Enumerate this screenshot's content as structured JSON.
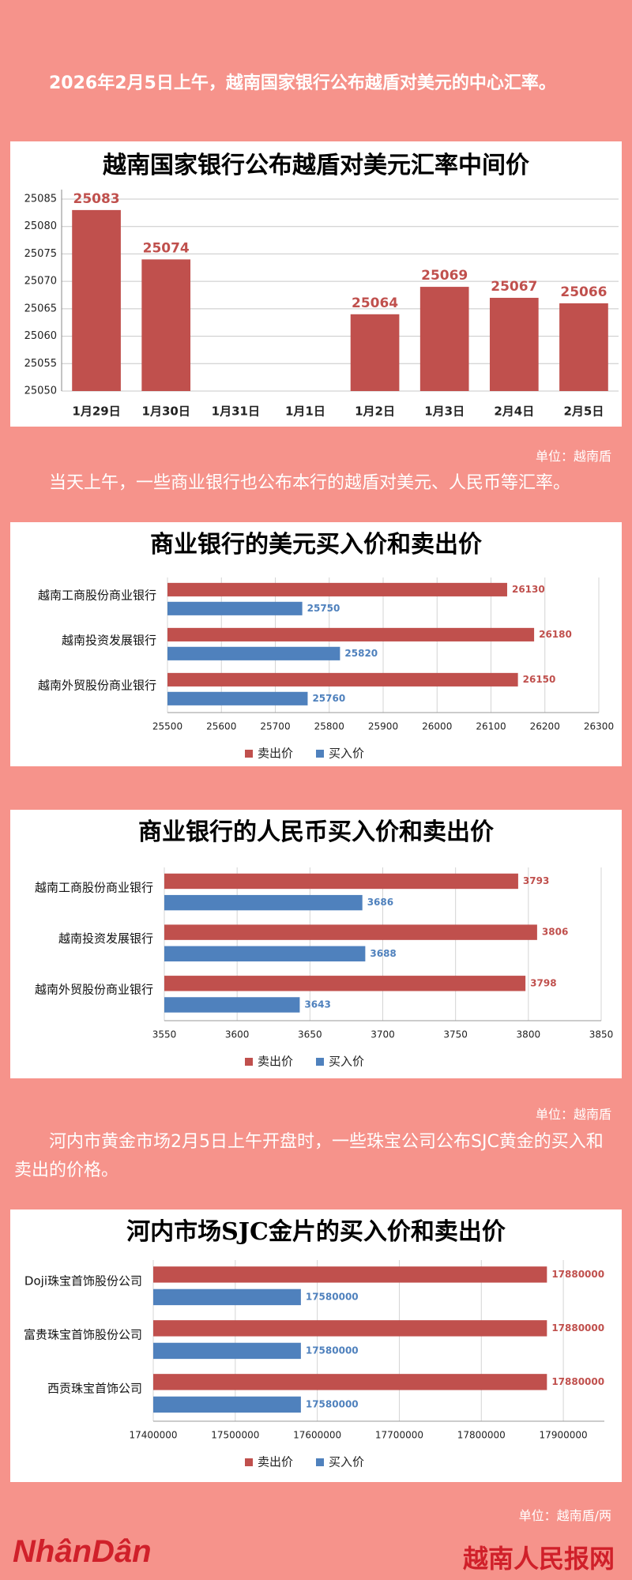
{
  "paragraphs": [
    "2026年2月5日上午，越南国家银行公布越盾对美元的中心汇率。",
    "当天上午，一些商业银行也公布本行的越盾对美元、人民币等汇率。",
    "河内市黄金市场2月5日上午开盘时，一些珠宝公司公布SJC黄金的买入和卖出的价格。"
  ],
  "units": [
    "单位：越南盾",
    "单位：越南盾",
    "单位：越南盾/两"
  ],
  "footer": {
    "logo": "NhânDân",
    "site": "越南人民报网"
  },
  "chart_data": [
    {
      "type": "bar",
      "title": "越南国家银行公布越盾对美元汇率中间价",
      "categories": [
        "1月29日",
        "1月30日",
        "1月31日",
        "1月1日",
        "1月2日",
        "1月3日",
        "2月4日",
        "2月5日"
      ],
      "values": [
        25083,
        25074,
        null,
        null,
        25064,
        25069,
        25067,
        25066
      ],
      "color": "#c0504d",
      "ylim": [
        25050,
        25085
      ],
      "yticks": [
        25050,
        25055,
        25060,
        25065,
        25070,
        25075,
        25080,
        25085
      ],
      "grid": true
    },
    {
      "type": "hbar",
      "title": "商业银行的美元买入价和卖出价",
      "categories": [
        "越南工商股份商业银行",
        "越南投资发展银行",
        "越南外贸股份商业银行"
      ],
      "series": [
        {
          "name": "卖出价",
          "color": "#c0504d",
          "values": [
            26130,
            26180,
            26150
          ]
        },
        {
          "name": "买入价",
          "color": "#4f81bd",
          "values": [
            25750,
            25820,
            25760
          ]
        }
      ],
      "xlim": [
        25500,
        26300
      ],
      "xticks": [
        25500,
        25600,
        25700,
        25800,
        25900,
        26000,
        26100,
        26200,
        26300
      ],
      "grid": true,
      "legend": "bottom"
    },
    {
      "type": "hbar",
      "title": "商业银行的人民币买入价和卖出价",
      "categories": [
        "越南工商股份商业银行",
        "越南投资发展银行",
        "越南外贸股份商业银行"
      ],
      "series": [
        {
          "name": "卖出价",
          "color": "#c0504d",
          "values": [
            3793,
            3806,
            3798
          ]
        },
        {
          "name": "买入价",
          "color": "#4f81bd",
          "values": [
            3686,
            3688,
            3643
          ]
        }
      ],
      "xlim": [
        3550,
        3850
      ],
      "xticks": [
        3550,
        3600,
        3650,
        3700,
        3750,
        3800,
        3850
      ],
      "grid": true,
      "legend": "bottom"
    },
    {
      "type": "hbar",
      "title": "河内市场SJC金片的买入价和卖出价",
      "categories": [
        "Doji珠宝首饰股份公司",
        "富贵珠宝首饰股份公司",
        "西贡珠宝首饰公司"
      ],
      "series": [
        {
          "name": "卖出价",
          "color": "#c0504d",
          "values": [
            17880000,
            17880000,
            17880000
          ]
        },
        {
          "name": "买入价",
          "color": "#4f81bd",
          "values": [
            17580000,
            17580000,
            17580000
          ]
        }
      ],
      "xlim": [
        17400000,
        17950000
      ],
      "xticks": [
        17400000,
        17500000,
        17600000,
        17700000,
        17800000,
        17900000
      ],
      "grid": true,
      "legend": "bottom"
    }
  ]
}
